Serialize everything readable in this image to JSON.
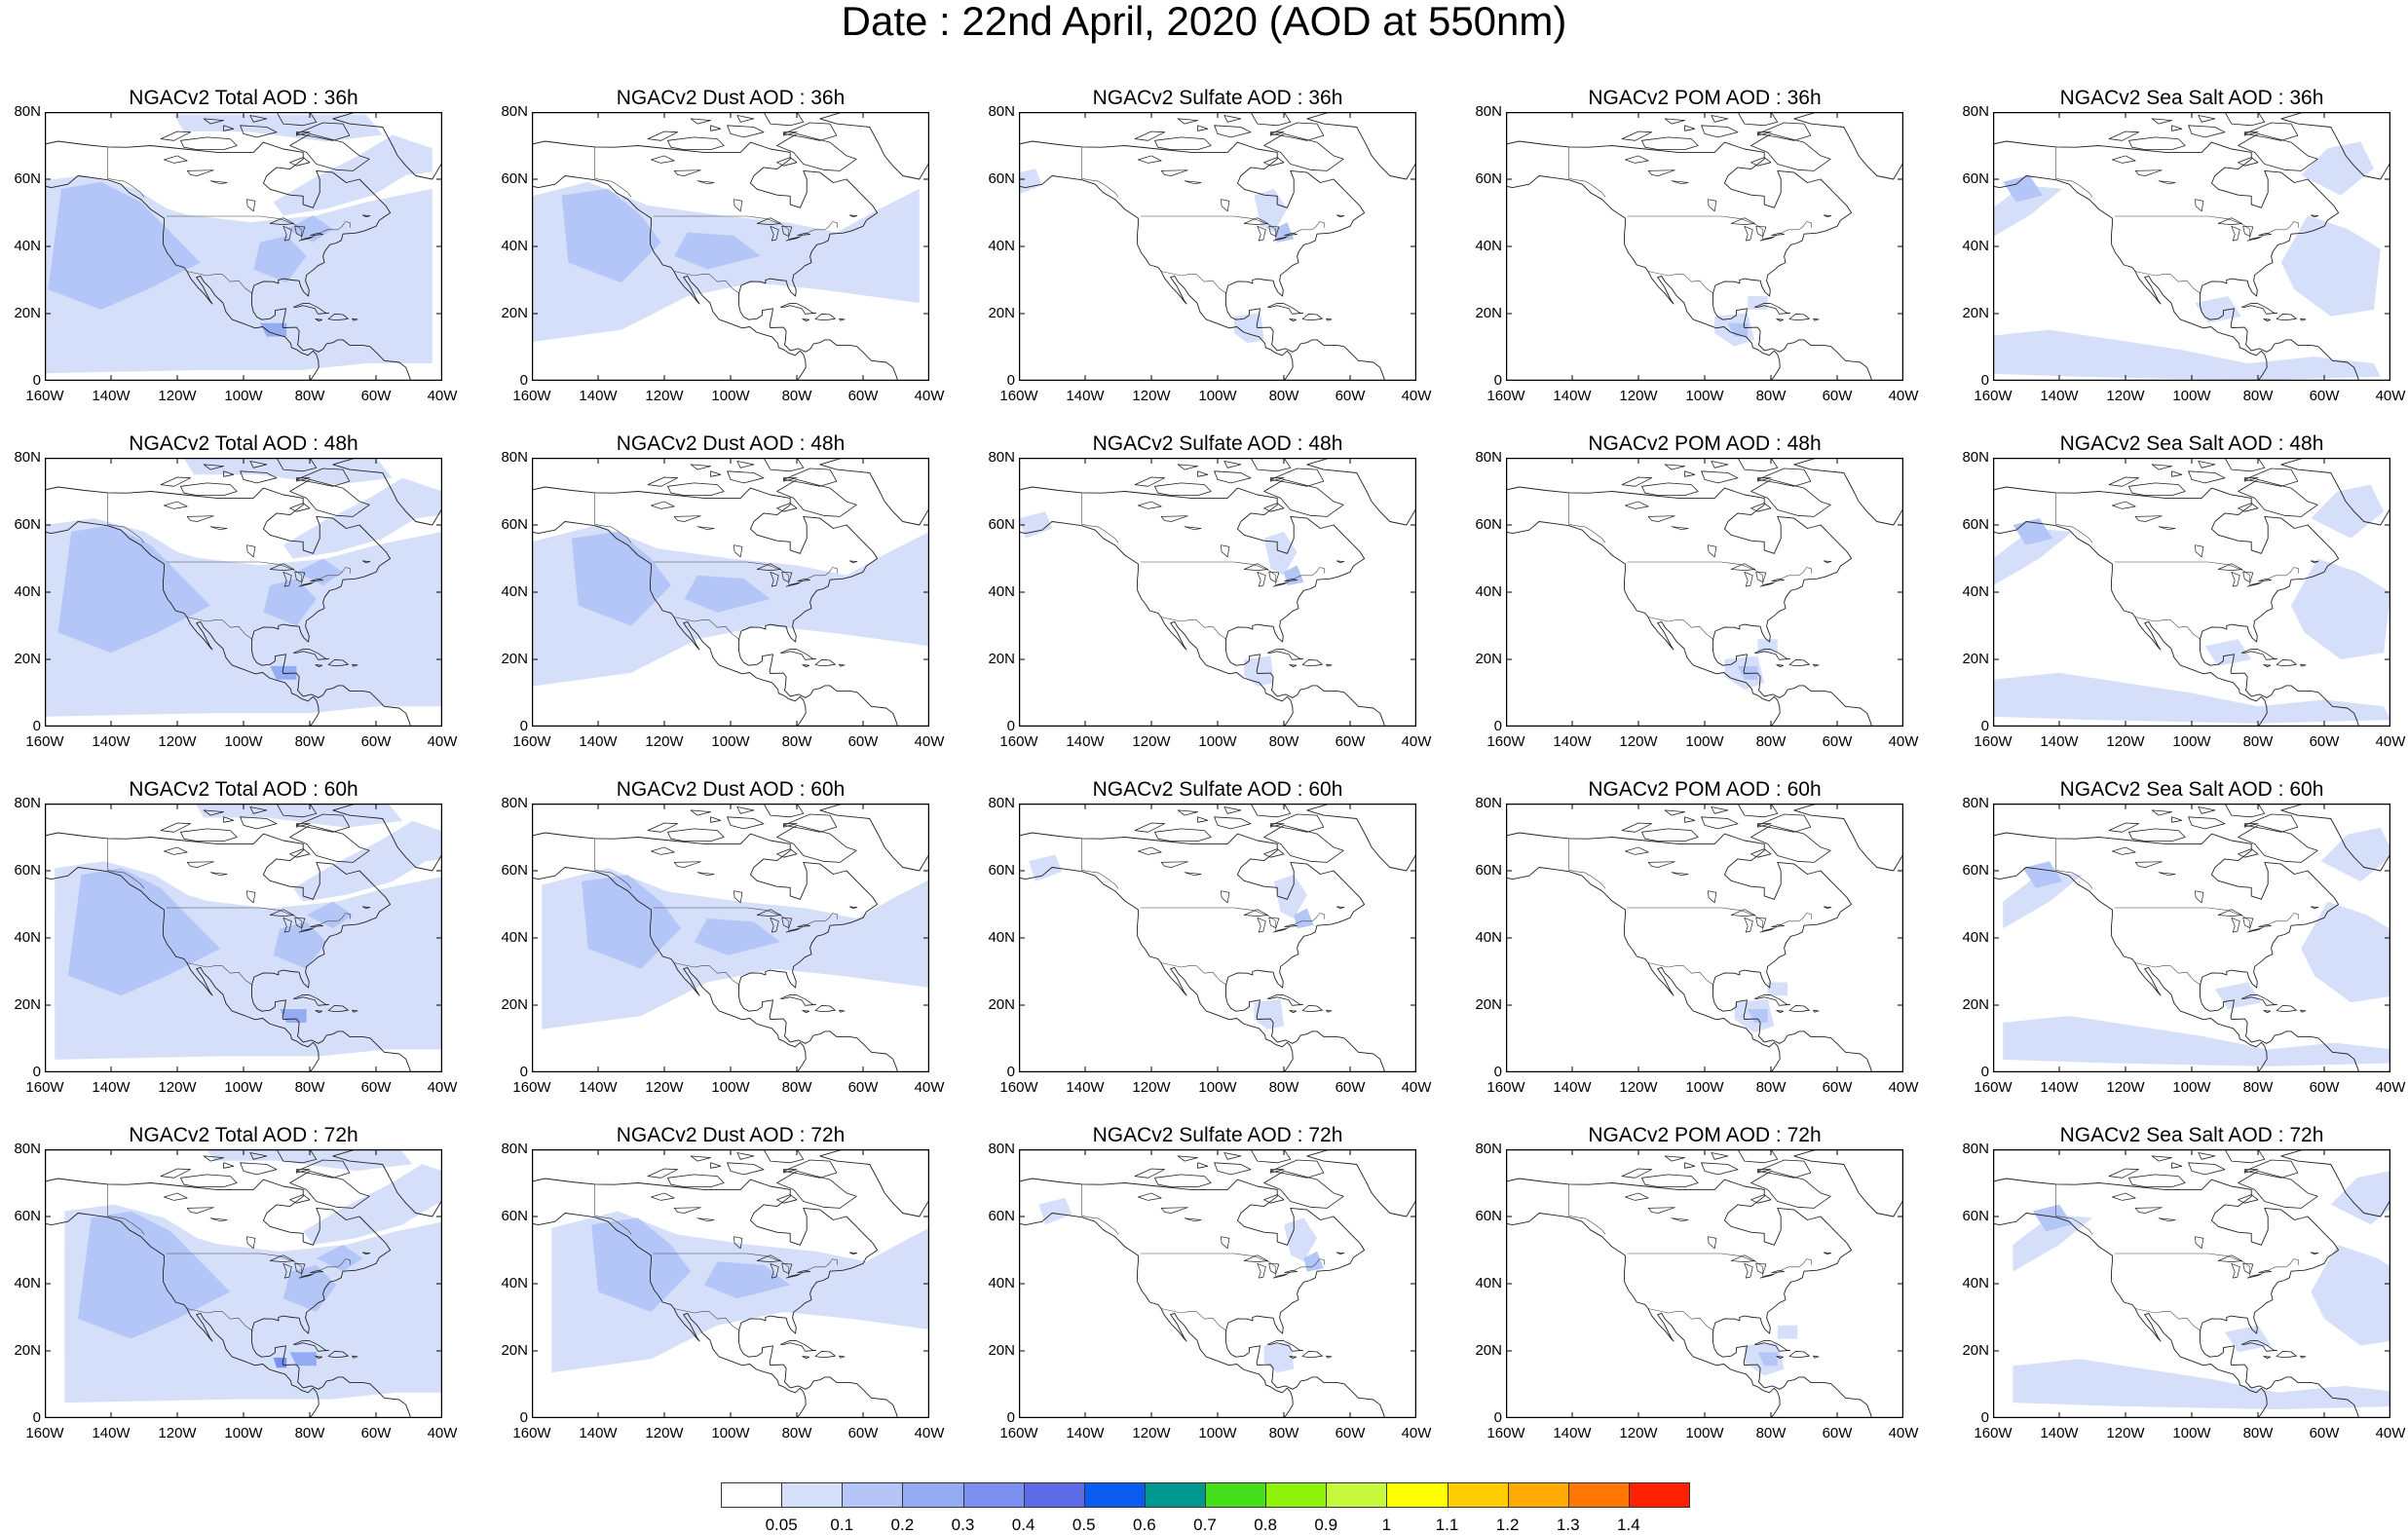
{
  "figure_title": "Date : 22nd April, 2020 (AOD at 550nm)",
  "y_ticks": [
    "80N",
    "60N",
    "40N",
    "20N",
    "0"
  ],
  "x_ticks": [
    "160W",
    "140W",
    "120W",
    "100W",
    "80W",
    "60W",
    "40W"
  ],
  "panels": [
    {
      "title": "NGACv2 Total AOD : 36h",
      "species": "total",
      "lead": 36
    },
    {
      "title": "NGACv2 Dust AOD : 36h",
      "species": "dust",
      "lead": 36
    },
    {
      "title": "NGACv2 Sulfate AOD : 36h",
      "species": "sulfate",
      "lead": 36
    },
    {
      "title": "NGACv2 POM AOD : 36h",
      "species": "pom",
      "lead": 36
    },
    {
      "title": "NGACv2 Sea Salt AOD : 36h",
      "species": "seasalt",
      "lead": 36
    },
    {
      "title": "NGACv2 Total AOD : 48h",
      "species": "total",
      "lead": 48
    },
    {
      "title": "NGACv2 Dust AOD : 48h",
      "species": "dust",
      "lead": 48
    },
    {
      "title": "NGACv2 Sulfate AOD : 48h",
      "species": "sulfate",
      "lead": 48
    },
    {
      "title": "NGACv2 POM AOD : 48h",
      "species": "pom",
      "lead": 48
    },
    {
      "title": "NGACv2 Sea Salt AOD : 48h",
      "species": "seasalt",
      "lead": 48
    },
    {
      "title": "NGACv2 Total AOD : 60h",
      "species": "total",
      "lead": 60
    },
    {
      "title": "NGACv2 Dust AOD : 60h",
      "species": "dust",
      "lead": 60
    },
    {
      "title": "NGACv2 Sulfate AOD : 60h",
      "species": "sulfate",
      "lead": 60
    },
    {
      "title": "NGACv2 POM AOD : 60h",
      "species": "pom",
      "lead": 60
    },
    {
      "title": "NGACv2 Sea Salt AOD : 60h",
      "species": "seasalt",
      "lead": 60
    },
    {
      "title": "NGACv2 Total AOD : 72h",
      "species": "total",
      "lead": 72
    },
    {
      "title": "NGACv2 Dust AOD : 72h",
      "species": "dust",
      "lead": 72
    },
    {
      "title": "NGACv2 Sulfate AOD : 72h",
      "species": "sulfate",
      "lead": 72
    },
    {
      "title": "NGACv2 POM AOD : 72h",
      "species": "pom",
      "lead": 72
    },
    {
      "title": "NGACv2 Sea Salt  AOD : 72h",
      "species": "seasalt",
      "lead": 72
    }
  ],
  "colorbar": {
    "colors": [
      "#ffffff",
      "#d5dffa",
      "#b4c6f7",
      "#93acf4",
      "#7b8ff0",
      "#5d6ae8",
      "#0a5cf0",
      "#00998f",
      "#45e01b",
      "#8ff209",
      "#c6f83c",
      "#ffff00",
      "#ffcc00",
      "#ffaa00",
      "#ff7700",
      "#ff2200"
    ],
    "labels": [
      "0.05",
      "0.1",
      "0.2",
      "0.3",
      "0.4",
      "0.5",
      "0.6",
      "0.7",
      "0.8",
      "0.9",
      "1",
      "1.1",
      "1.2",
      "1.3",
      "1.4"
    ]
  },
  "shading_colors": {
    "light": "#d5dffa",
    "mid": "#b4c6f7",
    "strong": "#93acf4",
    "peak": "#7b8ff0"
  }
}
